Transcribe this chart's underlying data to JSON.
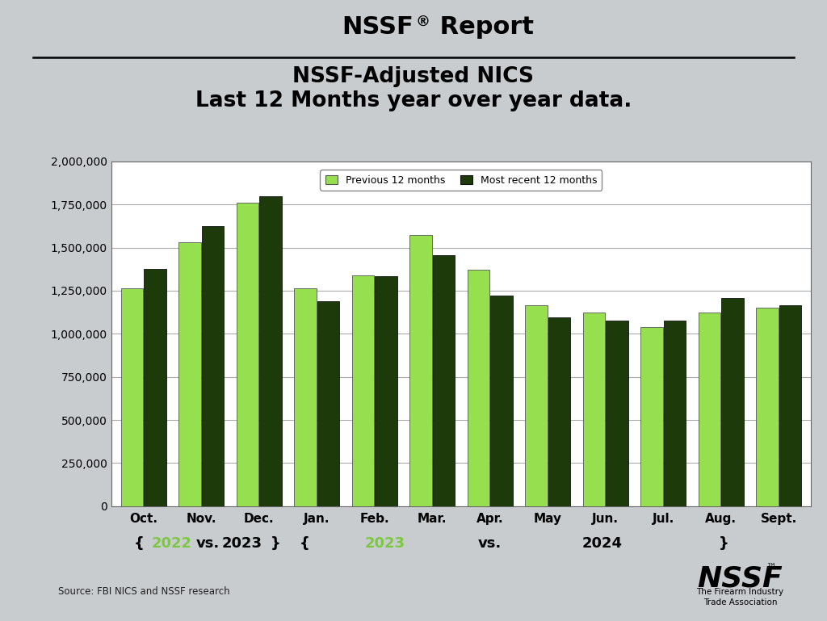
{
  "categories": [
    "Oct.",
    "Nov.",
    "Dec.",
    "Jan.",
    "Feb.",
    "Mar.",
    "Apr.",
    "May",
    "Jun.",
    "Jul.",
    "Aug.",
    "Sept."
  ],
  "previous_12_months": [
    1265000,
    1530000,
    1760000,
    1265000,
    1340000,
    1575000,
    1370000,
    1165000,
    1125000,
    1040000,
    1125000,
    1150000
  ],
  "most_recent_12_months": [
    1375000,
    1625000,
    1800000,
    1190000,
    1335000,
    1455000,
    1220000,
    1095000,
    1075000,
    1075000,
    1210000,
    1165000
  ],
  "light_green": "#96E050",
  "dark_green": "#1C3A0A",
  "title_line1": "NSSF® Report",
  "title_line2": "NSSF-Adjusted NICS",
  "title_line3": "Last 12 Months year over year data.",
  "legend_label1": "Previous 12 months",
  "legend_label2": "Most recent 12 months",
  "ylim": [
    0,
    2000000
  ],
  "ytick_step": 250000,
  "source_text": "Source: FBI NICS and NSSF research",
  "bg_color": "#c8cccf",
  "chart_bg": "#ffffff",
  "grid_color": "#aaaaaa",
  "anno_y_label": "{ 2022 vs. 2023 } {        2023        vs.        2024        }",
  "year_color": "#7DC843"
}
